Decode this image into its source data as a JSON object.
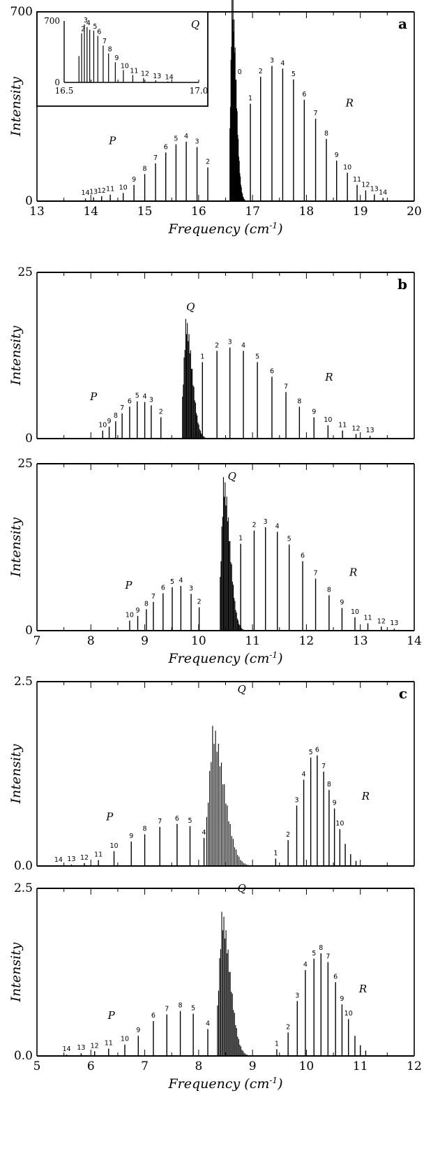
{
  "chart_data": [
    {
      "id": "a",
      "type": "bar",
      "panel_label": "a",
      "xlim": [
        13,
        20
      ],
      "ylim": [
        0,
        700
      ],
      "xticks": [
        "13",
        "14",
        "15",
        "16",
        "17",
        "18",
        "19",
        "20"
      ],
      "yticks": [
        "0",
        "700"
      ],
      "xlabel": "Frequency (cm⁻¹)",
      "ylabel": "Intensity",
      "branch_labels": [
        {
          "text": "P",
          "x": 14.4,
          "y": 210
        },
        {
          "text": "Q",
          "x": 16.6,
          "y": 820
        },
        {
          "text": "R",
          "x": 18.8,
          "y": 350
        }
      ],
      "Q_branch": {
        "start": 16.58,
        "end": 16.9,
        "peak": 770,
        "label": "0",
        "label_x": 16.76,
        "label_y": 470
      },
      "lines": [
        {
          "x": 13.9,
          "y": 10,
          "label": "14"
        },
        {
          "x": 14.05,
          "y": 14,
          "label": "13"
        },
        {
          "x": 14.2,
          "y": 18,
          "label": "12"
        },
        {
          "x": 14.36,
          "y": 24,
          "label": "11"
        },
        {
          "x": 14.6,
          "y": 30,
          "label": "10"
        },
        {
          "x": 14.8,
          "y": 60,
          "label": "9"
        },
        {
          "x": 15.0,
          "y": 100,
          "label": "8"
        },
        {
          "x": 15.2,
          "y": 140,
          "label": "7"
        },
        {
          "x": 15.39,
          "y": 180,
          "label": "6"
        },
        {
          "x": 15.58,
          "y": 210,
          "label": "5"
        },
        {
          "x": 15.77,
          "y": 220,
          "label": "4"
        },
        {
          "x": 15.97,
          "y": 200,
          "label": "3"
        },
        {
          "x": 16.17,
          "y": 125,
          "label": "2"
        },
        {
          "x": 16.96,
          "y": 360,
          "label": "1"
        },
        {
          "x": 17.15,
          "y": 460,
          "label": "2"
        },
        {
          "x": 17.36,
          "y": 500,
          "label": "3"
        },
        {
          "x": 17.56,
          "y": 490,
          "label": "4"
        },
        {
          "x": 17.76,
          "y": 450,
          "label": "5"
        },
        {
          "x": 17.96,
          "y": 375,
          "label": "6"
        },
        {
          "x": 18.17,
          "y": 305,
          "label": "7"
        },
        {
          "x": 18.37,
          "y": 230,
          "label": "8"
        },
        {
          "x": 18.56,
          "y": 150,
          "label": "9"
        },
        {
          "x": 18.76,
          "y": 105,
          "label": "10"
        },
        {
          "x": 18.94,
          "y": 60,
          "label": "11"
        },
        {
          "x": 19.1,
          "y": 40,
          "label": "12"
        },
        {
          "x": 19.26,
          "y": 25,
          "label": "13"
        },
        {
          "x": 19.42,
          "y": 12,
          "label": "14"
        }
      ],
      "inset": {
        "type": "bar",
        "xlim": [
          16.5,
          17.0
        ],
        "ylim": [
          0,
          700
        ],
        "xticks": [
          "16.5",
          "17.0"
        ],
        "yticks": [
          "0",
          "700"
        ],
        "branch_label": "Q",
        "lines": [
          {
            "x": 16.555,
            "y": 300
          },
          {
            "x": 16.565,
            "y": 560,
            "label": "2"
          },
          {
            "x": 16.575,
            "y": 660,
            "label": "3"
          },
          {
            "x": 16.585,
            "y": 630,
            "label": "4"
          },
          {
            "x": 16.595,
            "y": 600
          },
          {
            "x": 16.61,
            "y": 590,
            "label": "5"
          },
          {
            "x": 16.625,
            "y": 530,
            "label": "6"
          },
          {
            "x": 16.645,
            "y": 420,
            "label": "7"
          },
          {
            "x": 16.665,
            "y": 330,
            "label": "8"
          },
          {
            "x": 16.69,
            "y": 230,
            "label": "9"
          },
          {
            "x": 16.72,
            "y": 140,
            "label": "10"
          },
          {
            "x": 16.755,
            "y": 85,
            "label": "11"
          },
          {
            "x": 16.795,
            "y": 50,
            "label": "12"
          },
          {
            "x": 16.84,
            "y": 25,
            "label": "13"
          },
          {
            "x": 16.885,
            "y": 12,
            "label": "14"
          }
        ]
      }
    },
    {
      "id": "b-top",
      "type": "bar",
      "panel_label": "b",
      "xlim": [
        7,
        14
      ],
      "ylim": [
        0,
        25
      ],
      "yticks": [
        "0",
        "25"
      ],
      "ylabel": "Intensity",
      "branch_labels": [
        {
          "text": "P",
          "x": 8.05,
          "y": 5.8
        },
        {
          "text": "Q",
          "x": 9.85,
          "y": 19.3
        },
        {
          "text": "R",
          "x": 12.42,
          "y": 8.7
        }
      ],
      "Q_branch": {
        "start": 9.7,
        "end": 10.2,
        "peak": 18
      },
      "lines": [
        {
          "x": 8.22,
          "y": 1.2,
          "label": "10"
        },
        {
          "x": 8.34,
          "y": 1.8,
          "label": "9"
        },
        {
          "x": 8.46,
          "y": 2.6,
          "label": "8"
        },
        {
          "x": 8.58,
          "y": 3.8,
          "label": "7"
        },
        {
          "x": 8.72,
          "y": 4.8,
          "label": "6"
        },
        {
          "x": 8.86,
          "y": 5.6,
          "label": "5"
        },
        {
          "x": 9.0,
          "y": 5.5,
          "label": "4"
        },
        {
          "x": 9.12,
          "y": 5.0,
          "label": "3"
        },
        {
          "x": 9.3,
          "y": 3.2,
          "label": "2"
        },
        {
          "x": 10.07,
          "y": 11.5,
          "label": "1"
        },
        {
          "x": 10.34,
          "y": 13.2,
          "label": "2"
        },
        {
          "x": 10.58,
          "y": 13.7,
          "label": "3"
        },
        {
          "x": 10.83,
          "y": 13.2,
          "label": "4"
        },
        {
          "x": 11.09,
          "y": 11.5,
          "label": "5"
        },
        {
          "x": 11.36,
          "y": 9.3,
          "label": "6"
        },
        {
          "x": 11.62,
          "y": 7.0,
          "label": "7"
        },
        {
          "x": 11.87,
          "y": 4.8,
          "label": "8"
        },
        {
          "x": 12.14,
          "y": 3.2,
          "label": "9"
        },
        {
          "x": 12.4,
          "y": 2.0,
          "label": "10"
        },
        {
          "x": 12.67,
          "y": 1.2,
          "label": "11"
        },
        {
          "x": 12.92,
          "y": 0.7,
          "label": "12"
        },
        {
          "x": 13.18,
          "y": 0.4,
          "label": "13"
        }
      ]
    },
    {
      "id": "b-bottom",
      "type": "bar",
      "xlim": [
        7,
        14
      ],
      "ylim": [
        0,
        25
      ],
      "xticks": [
        "7",
        "8",
        "9",
        "10",
        "11",
        "12",
        "13",
        "14"
      ],
      "yticks": [
        "0",
        "25"
      ],
      "xlabel": "Frequency (cm⁻¹)",
      "ylabel": "Intensity",
      "branch_labels": [
        {
          "text": "P",
          "x": 8.7,
          "y": 6.3
        },
        {
          "text": "Q",
          "x": 10.62,
          "y": 22.6
        },
        {
          "text": "R",
          "x": 12.87,
          "y": 8.2
        }
      ],
      "Q_branch": {
        "start": 10.4,
        "end": 10.9,
        "peak": 23
      },
      "lines": [
        {
          "x": 8.72,
          "y": 1.5,
          "label": "10"
        },
        {
          "x": 8.87,
          "y": 2.2,
          "label": "9"
        },
        {
          "x": 9.03,
          "y": 3.2,
          "label": "8"
        },
        {
          "x": 9.16,
          "y": 4.3,
          "label": "7"
        },
        {
          "x": 9.34,
          "y": 5.6,
          "label": "6"
        },
        {
          "x": 9.51,
          "y": 6.5,
          "label": "5"
        },
        {
          "x": 9.67,
          "y": 6.7,
          "label": "4"
        },
        {
          "x": 9.86,
          "y": 5.5,
          "label": "3"
        },
        {
          "x": 10.01,
          "y": 3.5,
          "label": "2"
        },
        {
          "x": 10.78,
          "y": 13.0,
          "label": "1"
        },
        {
          "x": 11.03,
          "y": 15.0,
          "label": "2"
        },
        {
          "x": 11.24,
          "y": 15.5,
          "label": "3"
        },
        {
          "x": 11.46,
          "y": 14.8,
          "label": "4"
        },
        {
          "x": 11.68,
          "y": 12.9,
          "label": "5"
        },
        {
          "x": 11.93,
          "y": 10.4,
          "label": "6"
        },
        {
          "x": 12.17,
          "y": 7.8,
          "label": "7"
        },
        {
          "x": 12.42,
          "y": 5.3,
          "label": "8"
        },
        {
          "x": 12.66,
          "y": 3.4,
          "label": "9"
        },
        {
          "x": 12.9,
          "y": 2.0,
          "label": "10"
        },
        {
          "x": 13.14,
          "y": 1.1,
          "label": "11"
        },
        {
          "x": 13.39,
          "y": 0.6,
          "label": "12"
        },
        {
          "x": 13.63,
          "y": 0.3,
          "label": "13"
        }
      ]
    },
    {
      "id": "c-top",
      "type": "bar",
      "panel_label": "c",
      "xlim": [
        5,
        12
      ],
      "ylim": [
        0,
        2.5
      ],
      "yticks": [
        "0.0",
        "2.5"
      ],
      "ylabel": "Intensity",
      "branch_labels": [
        {
          "text": "P",
          "x": 6.35,
          "y": 0.62
        },
        {
          "text": "Q",
          "x": 8.8,
          "y": 2.35
        },
        {
          "text": "R",
          "x": 11.1,
          "y": 0.9
        }
      ],
      "Q_branch": {
        "start": 8.15,
        "end": 9.05,
        "peak": 1.9
      },
      "lines": [
        {
          "x": 5.4,
          "y": 0.01,
          "label": "14"
        },
        {
          "x": 5.64,
          "y": 0.02,
          "label": "13"
        },
        {
          "x": 5.88,
          "y": 0.04,
          "label": "12"
        },
        {
          "x": 6.14,
          "y": 0.08,
          "label": "11"
        },
        {
          "x": 6.43,
          "y": 0.2,
          "label": "10"
        },
        {
          "x": 6.75,
          "y": 0.33,
          "label": "9"
        },
        {
          "x": 7.0,
          "y": 0.43,
          "label": "8"
        },
        {
          "x": 7.28,
          "y": 0.53,
          "label": "7"
        },
        {
          "x": 7.6,
          "y": 0.57,
          "label": "6"
        },
        {
          "x": 7.84,
          "y": 0.54,
          "label": "5"
        },
        {
          "x": 8.1,
          "y": 0.38,
          "label": "4"
        },
        {
          "x": 9.43,
          "y": 0.1,
          "label": "1"
        },
        {
          "x": 9.66,
          "y": 0.35,
          "label": "2"
        },
        {
          "x": 9.82,
          "y": 0.82,
          "label": "3"
        },
        {
          "x": 9.95,
          "y": 1.17,
          "label": "4"
        },
        {
          "x": 10.08,
          "y": 1.47,
          "label": "5"
        },
        {
          "x": 10.2,
          "y": 1.5,
          "label": "6"
        },
        {
          "x": 10.32,
          "y": 1.28,
          "label": "7"
        },
        {
          "x": 10.42,
          "y": 1.03,
          "label": "8"
        },
        {
          "x": 10.52,
          "y": 0.78,
          "label": "9"
        },
        {
          "x": 10.62,
          "y": 0.5,
          "label": "10"
        },
        {
          "x": 10.72,
          "y": 0.3
        },
        {
          "x": 10.82,
          "y": 0.16
        },
        {
          "x": 10.92,
          "y": 0.07
        }
      ]
    },
    {
      "id": "c-bottom",
      "type": "bar",
      "xlim": [
        5,
        12
      ],
      "ylim": [
        0,
        2.5
      ],
      "xticks": [
        "5",
        "6",
        "7",
        "8",
        "9",
        "10",
        "11",
        "12"
      ],
      "yticks": [
        "0.0",
        "2.5"
      ],
      "xlabel": "Frequency (cm⁻¹)",
      "ylabel": "Intensity",
      "branch_labels": [
        {
          "text": "P",
          "x": 6.38,
          "y": 0.55
        },
        {
          "text": "Q",
          "x": 8.8,
          "y": 2.45
        },
        {
          "text": "R",
          "x": 11.05,
          "y": 0.95
        }
      ],
      "Q_branch": {
        "start": 8.35,
        "end": 9.0,
        "peak": 2.15
      },
      "lines": [
        {
          "x": 5.55,
          "y": 0.02,
          "label": "14"
        },
        {
          "x": 5.82,
          "y": 0.04,
          "label": "13"
        },
        {
          "x": 6.07,
          "y": 0.07,
          "label": "12"
        },
        {
          "x": 6.33,
          "y": 0.11,
          "label": "11"
        },
        {
          "x": 6.63,
          "y": 0.17,
          "label": "10"
        },
        {
          "x": 6.88,
          "y": 0.3,
          "label": "9"
        },
        {
          "x": 7.16,
          "y": 0.52,
          "label": "6"
        },
        {
          "x": 7.41,
          "y": 0.62,
          "label": "7"
        },
        {
          "x": 7.66,
          "y": 0.67,
          "label": "8"
        },
        {
          "x": 7.9,
          "y": 0.63,
          "label": "5"
        },
        {
          "x": 8.17,
          "y": 0.4,
          "label": "4"
        },
        {
          "x": 9.45,
          "y": 0.1,
          "label": "1"
        },
        {
          "x": 9.66,
          "y": 0.35,
          "label": "2"
        },
        {
          "x": 9.83,
          "y": 0.82,
          "label": "3"
        },
        {
          "x": 9.98,
          "y": 1.28,
          "label": "4"
        },
        {
          "x": 10.14,
          "y": 1.45,
          "label": "5"
        },
        {
          "x": 10.27,
          "y": 1.53,
          "label": "8"
        },
        {
          "x": 10.4,
          "y": 1.4,
          "label": "7"
        },
        {
          "x": 10.54,
          "y": 1.1,
          "label": "6"
        },
        {
          "x": 10.66,
          "y": 0.77,
          "label": "9"
        },
        {
          "x": 10.78,
          "y": 0.55,
          "label": "10"
        },
        {
          "x": 10.9,
          "y": 0.3
        },
        {
          "x": 11.0,
          "y": 0.16
        },
        {
          "x": 11.1,
          "y": 0.08
        }
      ]
    }
  ]
}
